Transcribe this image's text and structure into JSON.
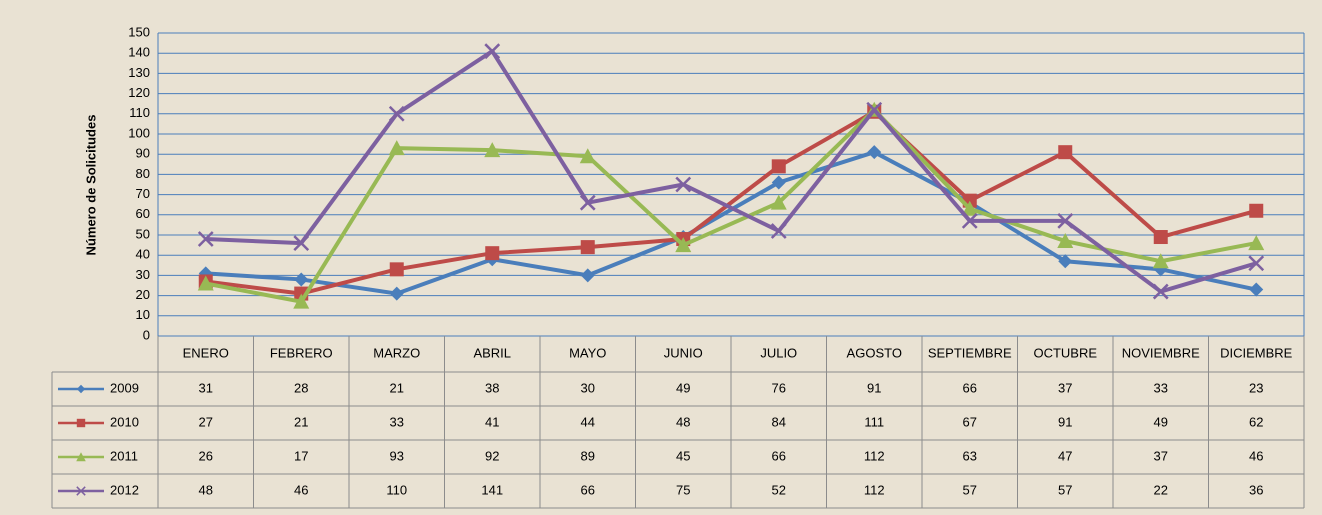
{
  "chart_data": {
    "type": "line",
    "y_label": "Número de Solicitudes",
    "categories": [
      "ENERO",
      "FEBRERO",
      "MARZO",
      "ABRIL",
      "MAYO",
      "JUNIO",
      "JULIO",
      "AGOSTO",
      "SEPTIEMBRE",
      "OCTUBRE",
      "NOVIEMBRE",
      "DICIEMBRE"
    ],
    "series": [
      {
        "name": "2009",
        "color": "#4a7ebb",
        "marker": "diamond",
        "values": [
          31,
          28,
          21,
          38,
          30,
          49,
          76,
          91,
          66,
          37,
          33,
          23
        ]
      },
      {
        "name": "2010",
        "color": "#be4b48",
        "marker": "square",
        "values": [
          27,
          21,
          33,
          41,
          44,
          48,
          84,
          111,
          67,
          91,
          49,
          62
        ]
      },
      {
        "name": "2011",
        "color": "#98b954",
        "marker": "triangle",
        "values": [
          26,
          17,
          93,
          92,
          89,
          45,
          66,
          112,
          63,
          47,
          37,
          46
        ]
      },
      {
        "name": "2012",
        "color": "#7d60a0",
        "marker": "x",
        "values": [
          48,
          46,
          110,
          141,
          66,
          75,
          52,
          112,
          57,
          57,
          22,
          36
        ]
      }
    ],
    "ylim": [
      0,
      150
    ],
    "yticks": [
      0,
      10,
      20,
      30,
      40,
      50,
      60,
      70,
      80,
      90,
      100,
      110,
      120,
      130,
      140,
      150
    ],
    "grid": true
  }
}
